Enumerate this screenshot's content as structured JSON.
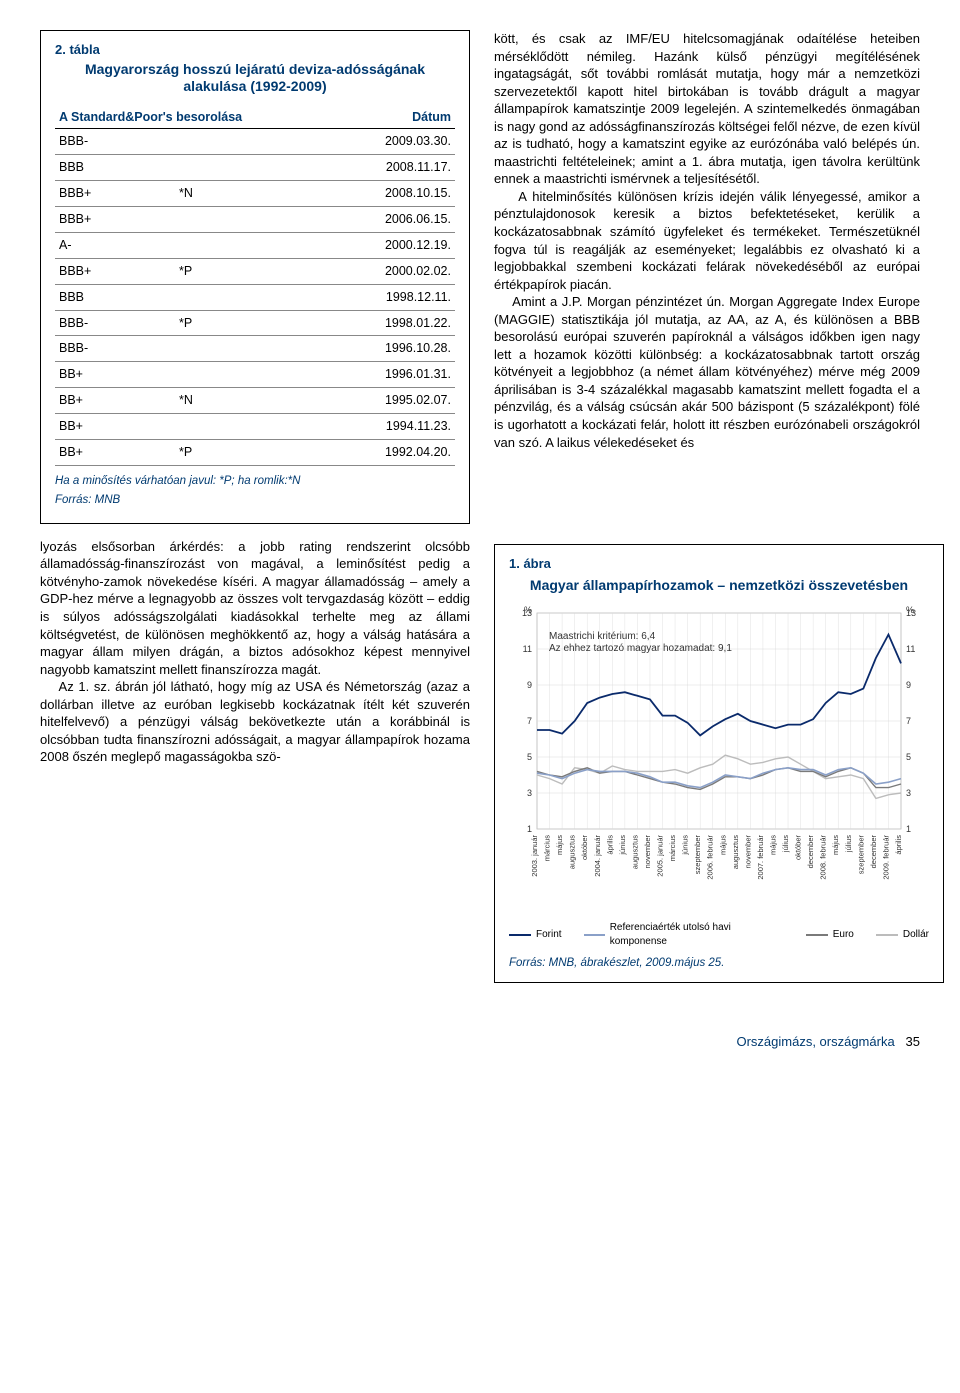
{
  "table": {
    "num": "2. tábla",
    "title": "Magyarország hosszú lejáratú deviza-adósságának alakulása (1992-2009)",
    "head_col1": "A Standard&Poor's besorolása",
    "head_col2": "Dátum",
    "rows": [
      {
        "r": "BBB-",
        "m": "",
        "d": "2009.03.30."
      },
      {
        "r": "BBB",
        "m": "",
        "d": "2008.11.17."
      },
      {
        "r": "BBB+",
        "m": "*N",
        "d": "2008.10.15."
      },
      {
        "r": "BBB+",
        "m": "",
        "d": "2006.06.15."
      },
      {
        "r": "A-",
        "m": "",
        "d": "2000.12.19."
      },
      {
        "r": "BBB+",
        "m": "*P",
        "d": "2000.02.02."
      },
      {
        "r": "BBB",
        "m": "",
        "d": "1998.12.11."
      },
      {
        "r": "BBB-",
        "m": "*P",
        "d": "1998.01.22."
      },
      {
        "r": "BBB-",
        "m": "",
        "d": "1996.10.28."
      },
      {
        "r": "BB+",
        "m": "",
        "d": "1996.01.31."
      },
      {
        "r": "BB+",
        "m": "*N",
        "d": "1995.02.07."
      },
      {
        "r": "BB+",
        "m": "",
        "d": "1994.11.23."
      },
      {
        "r": "BB+",
        "m": "*P",
        "d": "1992.04.20."
      }
    ],
    "note": "Ha a minősítés várhatóan javul: *P; ha romlik:*N",
    "src": "Forrás: MNB"
  },
  "left_text_top": "lyozás elsősorban árkérdés: a jobb rating rendszerint olcsóbb államadósság-finanszírozást von magával, a leminősítést pedig a kötvényho-zamok növekedése kíséri. A magyar államadósság – amely a GDP-hez mérve a legnagyobb az összes volt tervgazdaság között – eddig is súlyos adósságszolgálati kiadásokkal terhelte meg az állami költségvetést, de különösen meghökkentő az, hogy a válság hatására a magyar állam milyen drágán, a biztos adósokhoz képest mennyivel nagyobb kamatszint mellett finanszírozza magát.",
  "left_text_bot": "Az 1. sz. ábrán jól látható, hogy míg az USA és Németország (azaz a dollárban illetve az euróban legkisebb kockázatnak ítélt két szuverén hitelfelvevő) a pénzügyi válság bekövetkezte után a korábbinál is olcsóbban tudta finanszírozni adósságait, a magyar állampapírok hozama 2008 őszén meglepő magasságokba szö-",
  "right_text": "kött, és csak az IMF/EU hitelcsomagjának odaítélése heteiben mérséklődött némileg. Hazánk külső pénzügyi megítélésének ingatagságát, sőt további romlását mutatja, hogy már a nemzetközi szervezetektől kapott hitel birtokában is tovább drágult a magyar állampapírok kamatszintje 2009 legelején. A szintemelkedés önmagában is nagy gond az adósságfinanszírozás költségei felől nézve, de ezen kívül az is tudható, hogy a kamatszint egyike az eurózónába való belépés ún. maastrichti feltételeinek; amint a 1. ábra mutatja, igen távolra kerültünk ennek a maastrichti ismérvnek a teljesítésétől.\n\nA hitelminősítés különösen krízis idején válik lényegessé, amikor a pénztulajdonosok keresik a biztos befektetéseket, kerülik a kockázatosabbnak számító ügyfeleket és termékeket. Természetüknél fogva túl is reagálják az eseményeket; legalábbis ez olvasható ki a legjobbakkal szembeni kockázati felárak növekedéséből az európai értékpapírok piacán.\n\nAmint a J.P. Morgan pénzintézet ún. Morgan Aggregate Index Europe (MAGGIE) statisztikája jól mutatja, az AA, az A, és különösen a BBB besorolású európai szuverén papíroknál a válságos időkben igen nagy lett a hozamok közötti különbség: a kockázatosabbnak tartott ország kötvényeit a legjobbhoz (a német állam kötvényéhez) mérve még 2009 áprilisában is 3-4 százalékkal magasabb kamatszint mellett fogadta el a pénzvilág, és a válság csúcsán akár 500 bázispont (5 százalékpont) fölé is ugorhatott a kockázati felár, holott itt részben eurózónabeli országokról van szó. A laikus vélekedéseket és",
  "chart": {
    "num": "1. ábra",
    "title": "Magyar állampapírhozamok – nemzetközi összevetésben",
    "annot1": "Maastrichi kritérium: 6,4",
    "annot2": "Az ehhez tartozó magyar hozamadat: 9,1",
    "ylabel_left": "%",
    "ylabel_right": "%",
    "ylim": [
      1,
      13
    ],
    "yticks": [
      1,
      3,
      5,
      7,
      9,
      11,
      13
    ],
    "xticks": [
      "2003. január",
      "március",
      "május",
      "augusztus",
      "október",
      "2004. január",
      "április",
      "június",
      "augusztus",
      "november",
      "2005. január",
      "március",
      "június",
      "szeptember",
      "2006. február",
      "május",
      "augusztus",
      "november",
      "2007. február",
      "május",
      "július",
      "október",
      "december",
      "2008. február",
      "május",
      "július",
      "szeptember",
      "december",
      "2009. február",
      "április"
    ],
    "colors": {
      "grid": "#d9d9d9",
      "border": "#888",
      "forint": "#0a2a6b",
      "reference": "#8aa0c8",
      "euro": "#7a7a7a",
      "dollar": "#bcbcbc",
      "bg": "#ffffff"
    },
    "series": {
      "forint": [
        6.5,
        6.5,
        6.3,
        7.0,
        8.0,
        8.3,
        8.5,
        8.6,
        8.4,
        8.2,
        7.3,
        7.3,
        6.9,
        6.2,
        6.7,
        7.1,
        7.4,
        7.0,
        6.8,
        6.6,
        6.8,
        6.8,
        7.1,
        8.0,
        8.6,
        8.5,
        8.8,
        10.5,
        11.8,
        10.2
      ],
      "reference": [
        4.1,
        4.0,
        3.8,
        4.1,
        4.3,
        4.2,
        4.2,
        4.2,
        4.1,
        3.9,
        3.6,
        3.6,
        3.4,
        3.3,
        3.6,
        4.0,
        3.9,
        3.8,
        4.1,
        4.3,
        4.4,
        4.3,
        4.3,
        4.0,
        4.3,
        4.4,
        4.1,
        3.5,
        3.6,
        3.8
      ],
      "euro": [
        4.2,
        4.0,
        3.9,
        4.2,
        4.4,
        4.1,
        4.2,
        4.2,
        4.0,
        3.8,
        3.6,
        3.5,
        3.3,
        3.2,
        3.5,
        3.9,
        3.9,
        3.8,
        4.0,
        4.3,
        4.4,
        4.2,
        4.2,
        3.9,
        4.2,
        4.4,
        4.1,
        3.3,
        3.3,
        3.5
      ],
      "dollar": [
        4.0,
        3.8,
        3.5,
        4.4,
        4.3,
        4.1,
        4.5,
        4.3,
        4.2,
        4.2,
        4.2,
        4.3,
        4.1,
        4.4,
        4.6,
        5.1,
        4.9,
        4.6,
        4.7,
        4.9,
        5.0,
        4.6,
        4.2,
        3.8,
        3.9,
        4.0,
        3.8,
        2.7,
        2.9,
        3.0
      ]
    },
    "legend": {
      "forint": "Forint",
      "reference": "Referenciaérték utolsó havi komponense",
      "euro": "Euro",
      "dollar": "Dollár"
    },
    "src": "Forrás: MNB, ábrakészlet, 2009.május 25."
  },
  "footer": {
    "section": "Országimázs, országmárka",
    "page": "35"
  }
}
